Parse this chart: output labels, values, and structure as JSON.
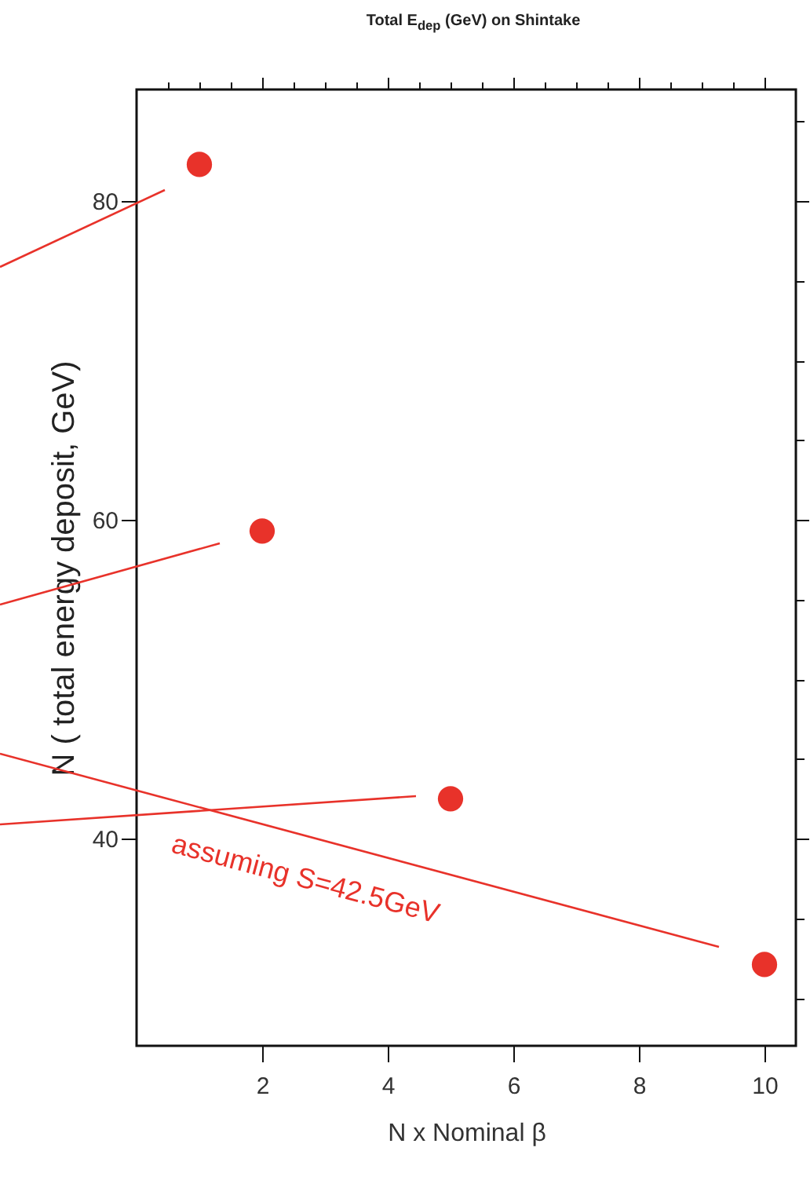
{
  "chart_data": {
    "type": "scatter",
    "title": "Total E$_{dep}$ (GeV) on Shintake",
    "xlabel": "N x Nominal β",
    "ylabel": "N  ( total energy deposit, GeV)",
    "x": [
      1,
      2,
      5,
      10
    ],
    "series": [
      {
        "color": "#e8322a",
        "values": [
          82.3,
          59.3,
          42.5,
          32.1
        ]
      }
    ],
    "marker": "circle",
    "annotations": [
      "assuming S=42.5GeV"
    ],
    "xlim": [
      0,
      10.5
    ],
    "xticks": [
      {
        "value": 0.5,
        "label": null
      },
      {
        "value": 1,
        "label": null
      },
      {
        "value": 1.5,
        "label": null
      },
      2,
      {
        "value": 2.5,
        "label": null
      },
      {
        "value": 3,
        "label": null
      },
      {
        "value": 3.5,
        "label": null
      },
      4,
      {
        "value": 4.5,
        "label": null
      },
      {
        "value": 5,
        "label": null
      },
      {
        "value": 5.5,
        "label": null
      },
      6,
      {
        "value": 6.5,
        "label": null
      },
      {
        "value": 7,
        "label": null
      },
      {
        "value": 7.5,
        "label": null
      },
      8,
      {
        "value": 8.5,
        "label": null
      },
      {
        "value": 9,
        "label": null
      },
      {
        "value": 9.5,
        "label": null
      },
      10
    ],
    "ylim": [
      27,
      87
    ],
    "yticks": [
      {
        "value": 30,
        "label": null
      },
      {
        "value": 35,
        "label": null
      },
      40,
      {
        "value": 45,
        "label": null
      },
      {
        "value": 50,
        "label": null
      },
      {
        "value": 55,
        "label": null
      },
      60,
      {
        "value": 65,
        "label": null
      },
      {
        "value": 70,
        "label": null
      },
      {
        "value": 75,
        "label": null
      },
      80,
      {
        "value": 85,
        "label": null
      }
    ]
  }
}
